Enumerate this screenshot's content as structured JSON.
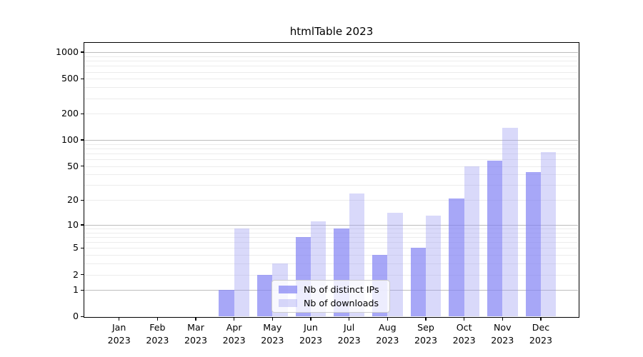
{
  "chart_data": {
    "type": "bar",
    "title": "htmlTable 2023",
    "categories": [
      "Jan",
      "Feb",
      "Mar",
      "Apr",
      "May",
      "Jun",
      "Jul",
      "Aug",
      "Sep",
      "Oct",
      "Nov",
      "Dec"
    ],
    "year": "2023",
    "series": [
      {
        "name": "Nb of distinct IPs",
        "values": [
          0,
          0,
          0,
          1,
          2,
          7,
          9,
          4,
          5,
          21,
          58,
          43
        ],
        "color": "#8282f3",
        "alpha": 0.7
      },
      {
        "name": "Nb of downloads",
        "values": [
          0,
          0,
          0,
          9,
          3,
          11,
          24,
          14,
          13,
          50,
          138,
          73
        ],
        "color": "#a0a0f3",
        "alpha": 0.4
      }
    ],
    "yaxis": {
      "scale": "log10(1+x)",
      "tick_values": [
        1000,
        500,
        200,
        100,
        50,
        20,
        10,
        5,
        2,
        1,
        0
      ],
      "major_gridlines": [
        1,
        10,
        100,
        1000
      ],
      "minor_gridlines": [
        2,
        3,
        4,
        5,
        6,
        7,
        8,
        9,
        20,
        30,
        40,
        50,
        60,
        70,
        80,
        90,
        200,
        300,
        400,
        500,
        600,
        700,
        800,
        900
      ],
      "ymin": 0,
      "ymax": 1270
    },
    "xlabel": "",
    "ylabel": "",
    "legend_position": "lower center",
    "grid": true,
    "colors": {
      "major_grid": "#bdbdbd",
      "minor_grid": "#ececec",
      "axis": "#000000",
      "text": "#000000",
      "legend_border": "#cccccc",
      "background": "#ffffff"
    }
  }
}
